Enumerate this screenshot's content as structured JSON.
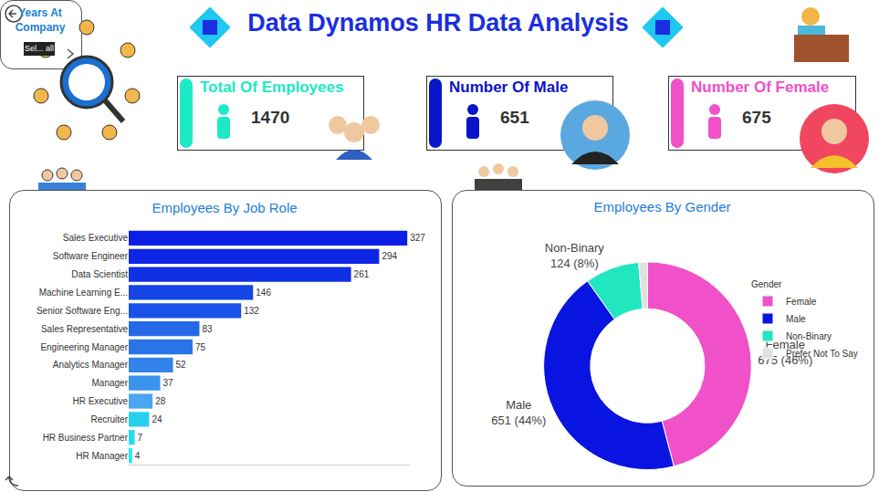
{
  "header": {
    "title": "Data Dynamos HR Data Analysis"
  },
  "slicer": {
    "title": "Years At Company",
    "value": "Sel... all"
  },
  "cards": [
    {
      "title": "Total Of Employees",
      "value": 1470,
      "color": "#1de9c4"
    },
    {
      "title": "Number Of Male",
      "value": 651,
      "color": "#0a14c8"
    },
    {
      "title": "Number Of Female",
      "value": 675,
      "color": "#f050c8"
    }
  ],
  "chart_data": [
    {
      "type": "bar",
      "title": "Employees By Job Role",
      "orientation": "horizontal",
      "categories": [
        "Sales Executive",
        "Software Engineer",
        "Data Scientist",
        "Machine Learning E...",
        "Senior Software Eng...",
        "Sales Representative",
        "Engineering Manager",
        "Analytics Manager",
        "Manager",
        "HR Executive",
        "Recruiter",
        "HR Business Partner",
        "HR Manager"
      ],
      "values": [
        327,
        294,
        261,
        146,
        132,
        83,
        75,
        52,
        37,
        28,
        24,
        7,
        4
      ],
      "colors": [
        "#0a1ee6",
        "#0c26e6",
        "#1030e6",
        "#1646e8",
        "#1a52e8",
        "#2468e8",
        "#2a74e8",
        "#3284ea",
        "#3a94ec",
        "#4aa6f0",
        "#28d0f0",
        "#22def0",
        "#1eeef0"
      ],
      "xlim": [
        0,
        330
      ],
      "data_labels": true,
      "tick_labels": "y",
      "grid": false
    },
    {
      "type": "pie",
      "title": "Employees By Gender",
      "legend_title": "Gender",
      "categories": [
        "Female",
        "Male",
        "Non-Binary",
        "Prefer Not To Say"
      ],
      "values": [
        675,
        651,
        124,
        20
      ],
      "value_labels": [
        "675 (46%)",
        "651 (44%)",
        "124 (8%)",
        null
      ],
      "colors": [
        "#f050c8",
        "#0a14e0",
        "#22e6c0",
        "#e0e0e0"
      ],
      "data_labels": true,
      "legend": "right"
    }
  ]
}
